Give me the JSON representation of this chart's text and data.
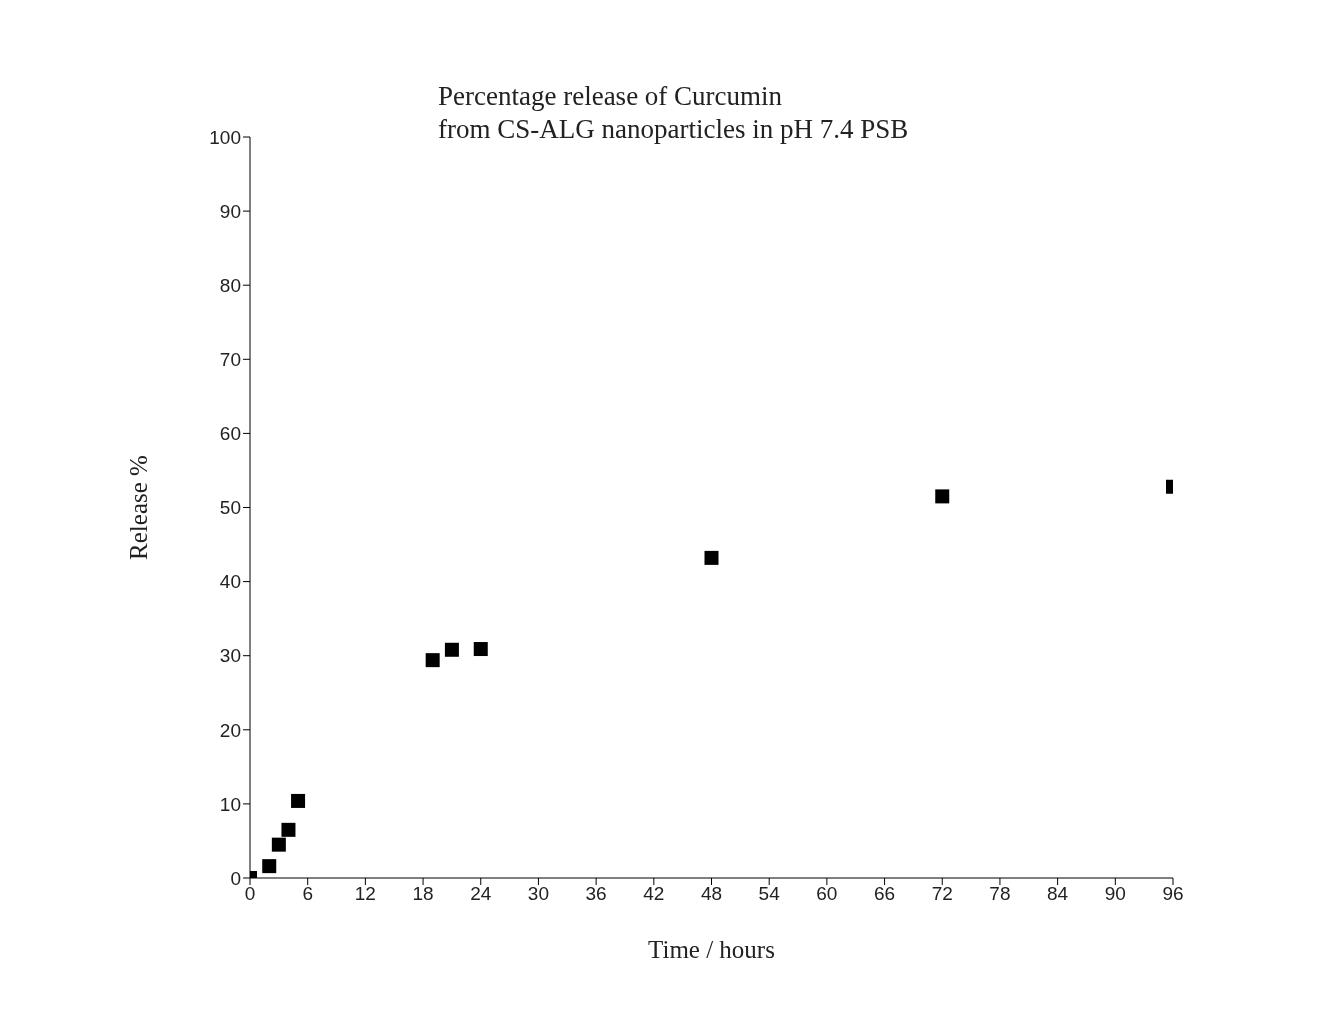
{
  "chart_data": {
    "type": "scatter",
    "title": "Percentage release of Curcumin\nfrom CS-ALG nanoparticles in pH 7.4 PSB",
    "xlabel": "Time / hours",
    "ylabel": "Release %",
    "x": [
      0,
      2,
      3,
      4,
      5,
      19,
      21,
      24,
      48,
      72,
      96
    ],
    "series": [
      {
        "color": "#000000",
        "values": [
          0,
          1.6,
          4.5,
          6.5,
          10.4,
          29.4,
          30.8,
          30.9,
          43.2,
          51.5,
          52.8
        ]
      }
    ],
    "xlim": [
      0,
      96
    ],
    "xticks": [
      0,
      6,
      12,
      18,
      24,
      30,
      36,
      42,
      48,
      54,
      60,
      66,
      72,
      78,
      84,
      90,
      96
    ],
    "ylim": [
      0,
      100
    ],
    "yticks": [
      0,
      10,
      20,
      30,
      40,
      50,
      60,
      70,
      80,
      90,
      100
    ],
    "marker": "square",
    "grid": false,
    "legend": false
  }
}
